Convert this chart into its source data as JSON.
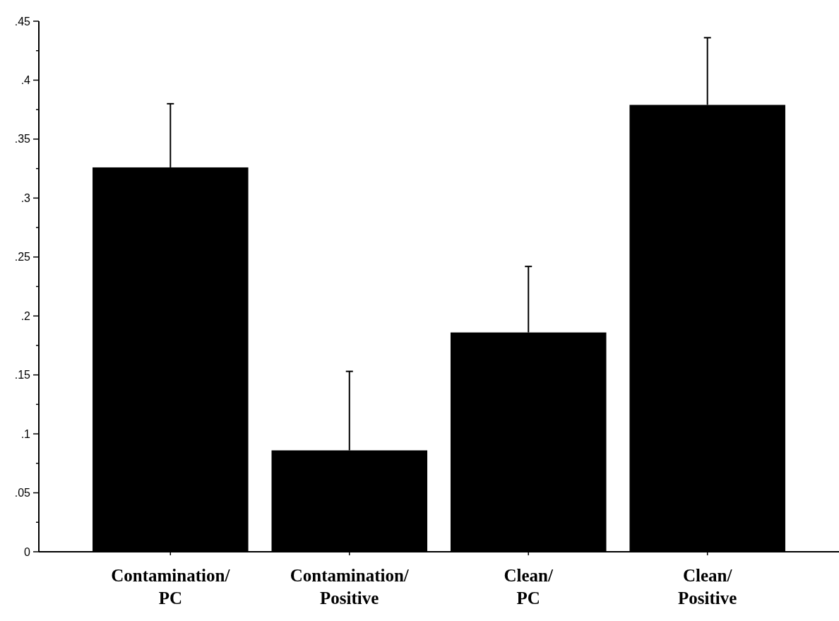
{
  "chart_data": {
    "type": "bar",
    "categories": [
      "Contamination/PC",
      "Contamination/Positive",
      "Clean/PC",
      "Clean/Positive"
    ],
    "values": [
      0.326,
      0.086,
      0.186,
      0.379
    ],
    "errors": [
      [
        0.326,
        0.38
      ],
      [
        0.086,
        0.153
      ],
      [
        0.186,
        0.242
      ],
      [
        0.379,
        0.436
      ]
    ],
    "color": "#000000",
    "ylim": [
      0,
      0.45
    ],
    "yticks": [
      {
        "value": 0,
        "label": "0"
      },
      {
        "value": 0.025,
        "label": null
      },
      {
        "value": 0.05,
        "label": ".05"
      },
      {
        "value": 0.075,
        "label": null
      },
      {
        "value": 0.1,
        "label": ".1"
      },
      {
        "value": 0.125,
        "label": null
      },
      {
        "value": 0.15,
        "label": ".15"
      },
      {
        "value": 0.175,
        "label": null
      },
      {
        "value": 0.2,
        "label": ".2"
      },
      {
        "value": 0.225,
        "label": null
      },
      {
        "value": 0.25,
        "label": ".25"
      },
      {
        "value": 0.275,
        "label": null
      },
      {
        "value": 0.3,
        "label": ".3"
      },
      {
        "value": 0.325,
        "label": null
      },
      {
        "value": 0.35,
        "label": ".35"
      },
      {
        "value": 0.375,
        "label": null
      },
      {
        "value": 0.4,
        "label": ".4"
      },
      {
        "value": 0.425,
        "label": null
      },
      {
        "value": 0.45,
        "label": ".45"
      }
    ],
    "grid": false
  }
}
